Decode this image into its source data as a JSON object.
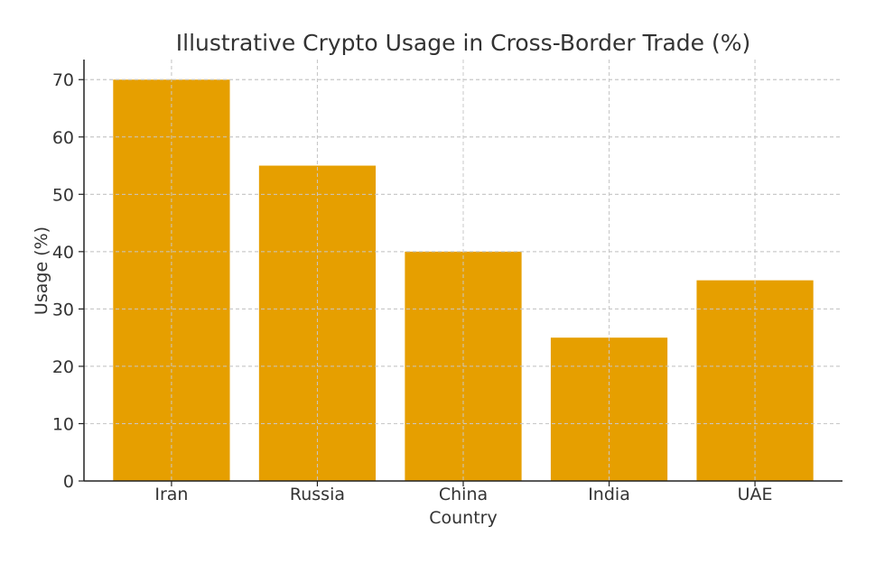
{
  "chart_data": {
    "type": "bar",
    "title": "Illustrative Crypto Usage in Cross-Border Trade (%)",
    "xlabel": "Country",
    "ylabel": "Usage (%)",
    "categories": [
      "Iran",
      "Russia",
      "China",
      "India",
      "UAE"
    ],
    "values": [
      70,
      55,
      40,
      25,
      35
    ],
    "ylim": [
      0,
      73.5
    ],
    "yticks": [
      0,
      10,
      20,
      30,
      40,
      50,
      60,
      70
    ],
    "grid": true,
    "bar_color": "#E69F00"
  }
}
